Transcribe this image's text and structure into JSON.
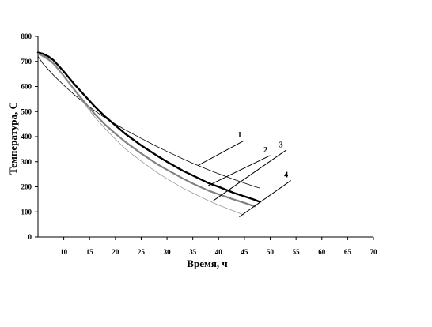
{
  "chart_data": {
    "type": "line",
    "xlabel": "Время, ч",
    "ylabel": "Температура, С",
    "xlim": [
      5,
      70
    ],
    "ylim": [
      0,
      800
    ],
    "x_ticks": [
      10,
      15,
      20,
      25,
      30,
      35,
      40,
      45,
      50,
      55,
      60,
      65,
      70
    ],
    "y_ticks": [
      0,
      100,
      200,
      300,
      400,
      500,
      600,
      700,
      800
    ],
    "grid": false,
    "series": [
      {
        "name": "1",
        "color": "#000000",
        "width": 0.8,
        "x": [
          5,
          6,
          8,
          10,
          12,
          14,
          16,
          18,
          20,
          22,
          25,
          28,
          30,
          33,
          35,
          38,
          40,
          43,
          45,
          47,
          48
        ],
        "y": [
          720,
          690,
          645,
          605,
          568,
          534,
          503,
          475,
          450,
          426,
          393,
          361,
          341,
          312,
          294,
          268,
          252,
          229,
          215,
          201,
          195
        ]
      },
      {
        "name": "2",
        "color": "#000000",
        "width": 2.4,
        "x": [
          5,
          6,
          7,
          8,
          10,
          12,
          14,
          16,
          18,
          20,
          22,
          25,
          28,
          30,
          33,
          35,
          38,
          40,
          43,
          45,
          47,
          48
        ],
        "y": [
          735,
          730,
          720,
          705,
          660,
          610,
          565,
          520,
          480,
          445,
          410,
          365,
          325,
          300,
          265,
          245,
          215,
          200,
          175,
          162,
          148,
          140
        ]
      },
      {
        "name": "3",
        "color": "#808080",
        "width": 2.2,
        "x": [
          5,
          6,
          7,
          8,
          10,
          12,
          14,
          16,
          18,
          20,
          22,
          25,
          28,
          30,
          33,
          35,
          38,
          40,
          43,
          45,
          47
        ],
        "y": [
          730,
          722,
          710,
          692,
          642,
          588,
          538,
          490,
          448,
          412,
          378,
          333,
          292,
          268,
          234,
          213,
          185,
          170,
          149,
          136,
          122
        ]
      },
      {
        "name": "4",
        "color": "#999999",
        "width": 0.8,
        "x": [
          5,
          7,
          8,
          10,
          12,
          14,
          16,
          18,
          20,
          22,
          25,
          28,
          30,
          33,
          35,
          38,
          40,
          43,
          45
        ],
        "y": [
          730,
          705,
          688,
          640,
          585,
          530,
          478,
          432,
          390,
          350,
          302,
          258,
          232,
          196,
          175,
          145,
          127,
          103,
          87
        ]
      }
    ],
    "callouts": [
      {
        "label": "1",
        "from": [
          36,
          285
        ],
        "to": [
          45,
          385
        ]
      },
      {
        "label": "2",
        "from": [
          38,
          205
        ],
        "to": [
          50,
          325
        ]
      },
      {
        "label": "3",
        "from": [
          39,
          145
        ],
        "to": [
          53,
          345
        ]
      },
      {
        "label": "4",
        "from": [
          44,
          80
        ],
        "to": [
          54,
          225
        ]
      }
    ]
  }
}
